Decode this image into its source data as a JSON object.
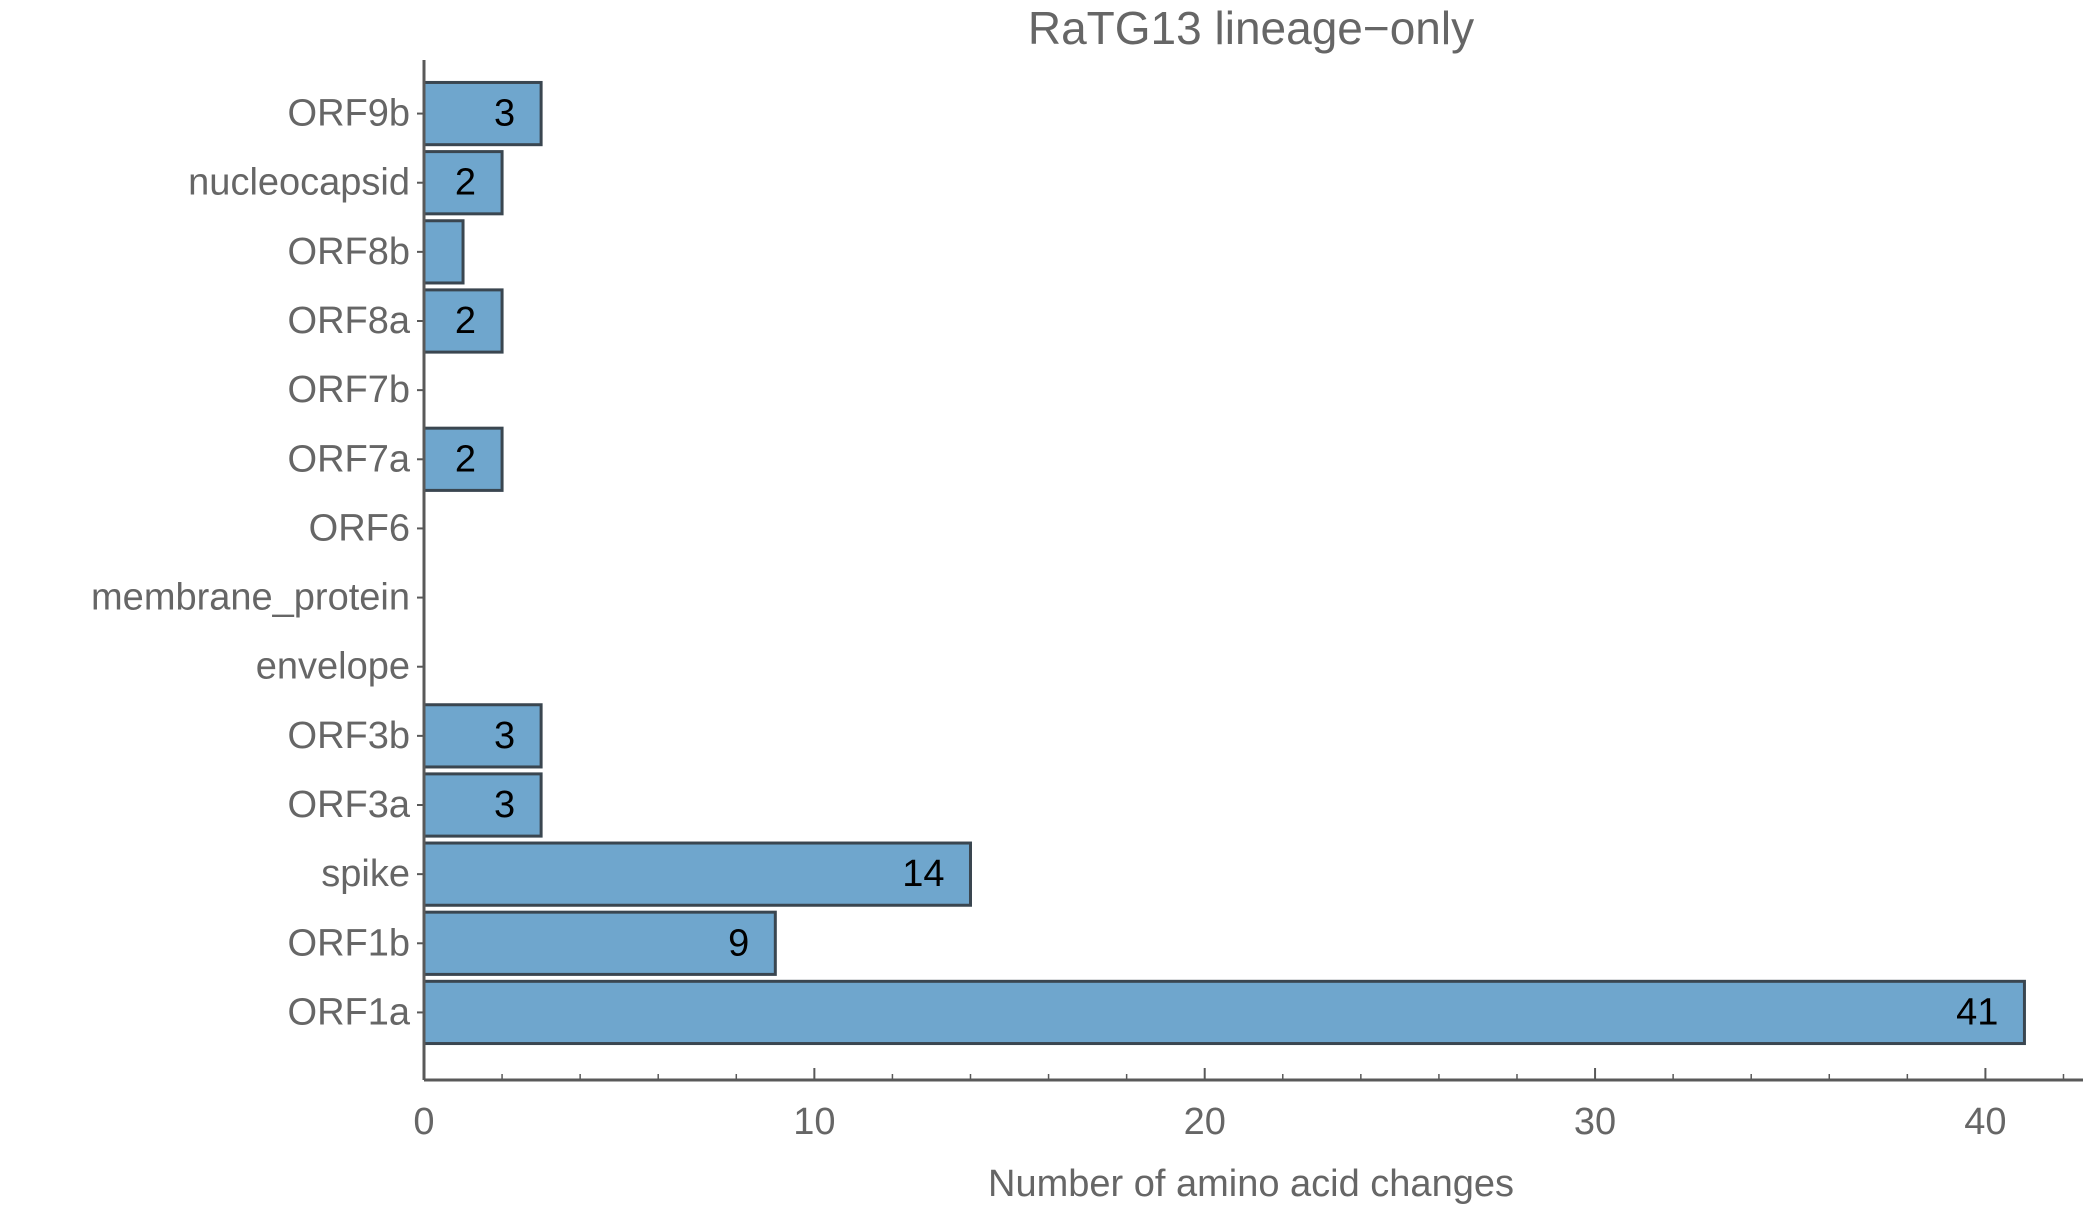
{
  "chart_data": {
    "type": "bar",
    "orientation": "horizontal",
    "title": "RaTG13 lineage−only",
    "xlabel": "Number of amino acid changes",
    "ylabel": "",
    "categories": [
      "ORF1a",
      "ORF1b",
      "spike",
      "ORF3a",
      "ORF3b",
      "envelope",
      "membrane_protein",
      "ORF6",
      "ORF7a",
      "ORF7b",
      "ORF8a",
      "ORF8b",
      "nucleocapsid",
      "ORF9b"
    ],
    "values": [
      41,
      9,
      14,
      3,
      3,
      0,
      0,
      0,
      2,
      0,
      2,
      1,
      2,
      3
    ],
    "value_labels": [
      "41",
      "9",
      "14",
      "3",
      "3",
      "",
      "",
      "",
      "2",
      "",
      "2",
      "",
      "2",
      "3"
    ],
    "xlim": [
      0,
      42.5
    ],
    "x_ticks": [
      0,
      10,
      20,
      30,
      40
    ],
    "x_tick_labels": [
      "0",
      "10",
      "20",
      "30",
      "40"
    ],
    "x_minor_ticks": [
      2,
      4,
      6,
      8,
      12,
      14,
      16,
      18,
      22,
      24,
      26,
      28,
      32,
      34,
      36,
      38,
      42
    ],
    "grid": false,
    "legend": "none",
    "colors": {
      "bar_fill": "#6fa6cd",
      "bar_stroke": "#3a4650",
      "axis": "#595959",
      "text": "#666666",
      "value_text": "#000000"
    }
  }
}
